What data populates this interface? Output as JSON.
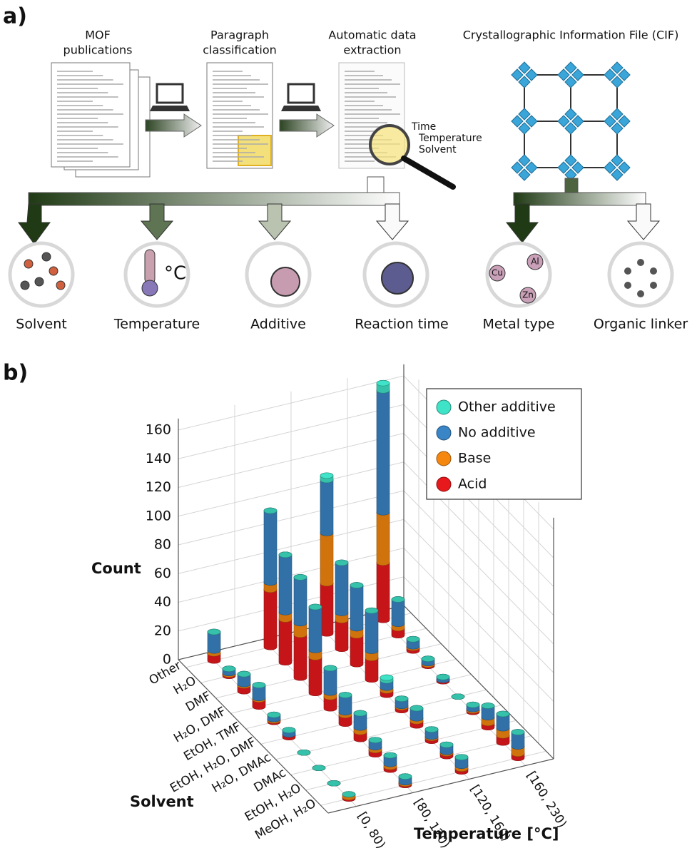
{
  "panel_a": {
    "label": "a)",
    "steps": [
      [
        "MOF",
        "publications"
      ],
      [
        "Paragraph",
        "classification"
      ],
      [
        "Automatic data",
        "extraction"
      ]
    ],
    "extracted": [
      "Time",
      "Temperature",
      "Solvent"
    ],
    "cif": "Crystallographic Information File (CIF)",
    "outputs": [
      "Solvent",
      "Temperature",
      "Additive",
      "Reaction time",
      "Metal type",
      "Organic linker"
    ],
    "degree": "°C",
    "metals": [
      "Cu",
      "Al",
      "Zn"
    ]
  },
  "chart_data": {
    "type": "bar3d",
    "panel_label": "b)",
    "zlabel": "Count",
    "ylabel": "Solvent",
    "xlabel": "Temperature [°C]",
    "solvents": [
      "Other",
      "H₂O",
      "DMF",
      "H₂O, DMF",
      "EtOH, TMF",
      "EtOH, H₂O, DMF",
      "H₂O, DMAc",
      "DMAc",
      "EtOH, H₂O",
      "MeOH, H₂O"
    ],
    "categories": [
      "[0, 80)",
      "[80, 120)",
      "[120, 160)",
      "[160, 230)"
    ],
    "zlim": [
      0,
      168
    ],
    "zticks": [
      0,
      20,
      40,
      60,
      80,
      100,
      120,
      140,
      160
    ],
    "legend": "upper right",
    "grid": true,
    "series": [
      {
        "name": "Acid",
        "color": "#e8191c",
        "values": [
          [
            5,
            40,
            35,
            40
          ],
          [
            1,
            30,
            20,
            5
          ],
          [
            4,
            30,
            20,
            2
          ],
          [
            5,
            25,
            15,
            1
          ],
          [
            1,
            8,
            3,
            1
          ],
          [
            2,
            6,
            2,
            0
          ],
          [
            0,
            5,
            3,
            1
          ],
          [
            0,
            3,
            2,
            3
          ],
          [
            0,
            2,
            2,
            5
          ],
          [
            1,
            1,
            2,
            3
          ]
        ]
      },
      {
        "name": "Base",
        "color": "#f5870f",
        "values": [
          [
            2,
            5,
            35,
            35
          ],
          [
            1,
            5,
            5,
            3
          ],
          [
            1,
            8,
            5,
            1
          ],
          [
            1,
            5,
            5,
            1
          ],
          [
            1,
            3,
            2,
            0
          ],
          [
            0,
            2,
            1,
            0
          ],
          [
            0,
            3,
            2,
            1
          ],
          [
            0,
            2,
            1,
            4
          ],
          [
            0,
            2,
            1,
            5
          ],
          [
            2,
            1,
            2,
            5
          ]
        ]
      },
      {
        "name": "No additive",
        "color": "#3a85c6",
        "values": [
          [
            13,
            50,
            37,
            85
          ],
          [
            3,
            40,
            35,
            17
          ],
          [
            7,
            32,
            30,
            5
          ],
          [
            9,
            30,
            28,
            3
          ],
          [
            3,
            17,
            5,
            2
          ],
          [
            3,
            12,
            5,
            0
          ],
          [
            0,
            10,
            7,
            3
          ],
          [
            0,
            5,
            5,
            8
          ],
          [
            0,
            6,
            5,
            10
          ],
          [
            0,
            4,
            6,
            10
          ]
        ]
      },
      {
        "name": "Other additive",
        "color": "#3fe3c8",
        "values": [
          [
            0,
            0,
            3,
            5
          ],
          [
            0,
            0,
            0,
            0
          ],
          [
            0,
            0,
            0,
            0
          ],
          [
            0,
            0,
            0,
            0
          ],
          [
            0,
            0,
            2,
            0
          ],
          [
            0,
            0,
            0,
            0
          ],
          [
            0,
            0,
            0,
            0
          ],
          [
            0,
            0,
            0,
            0
          ],
          [
            0,
            0,
            0,
            0
          ],
          [
            0,
            0,
            0,
            0
          ]
        ]
      }
    ]
  }
}
